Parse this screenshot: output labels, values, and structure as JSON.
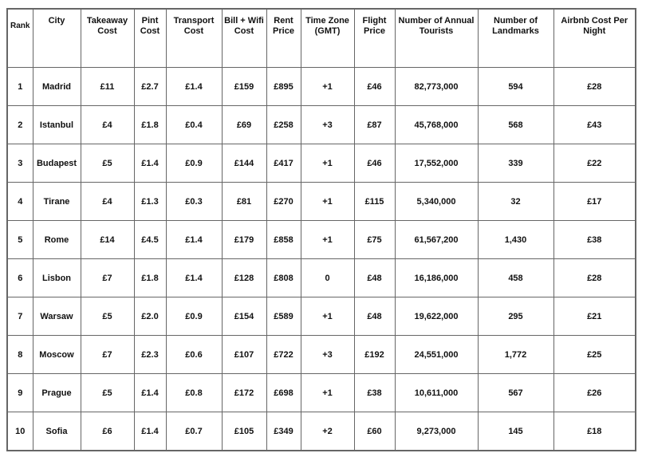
{
  "table": {
    "columns": [
      "Rank",
      "City",
      "Takeaway Cost",
      "Pint Cost",
      "Transport Cost",
      "Bill + Wifi Cost",
      "Rent Price",
      "Time Zone (GMT)",
      "Flight Price",
      "Number of Annual Tourists",
      "Number of Landmarks",
      "Airbnb Cost Per Night"
    ],
    "rows": [
      [
        "1",
        "Madrid",
        "£11",
        "£2.7",
        "£1.4",
        "£159",
        "£895",
        "+1",
        "£46",
        "82,773,000",
        "594",
        "£28"
      ],
      [
        "2",
        "Istanbul",
        "£4",
        "£1.8",
        "£0.4",
        "£69",
        "£258",
        "+3",
        "£87",
        "45,768,000",
        "568",
        "£43"
      ],
      [
        "3",
        "Budapest",
        "£5",
        "£1.4",
        "£0.9",
        "£144",
        "£417",
        "+1",
        "£46",
        "17,552,000",
        "339",
        "£22"
      ],
      [
        "4",
        "Tirane",
        "£4",
        "£1.3",
        "£0.3",
        "£81",
        "£270",
        "+1",
        "£115",
        "5,340,000",
        "32",
        "£17"
      ],
      [
        "5",
        "Rome",
        "£14",
        "£4.5",
        "£1.4",
        "£179",
        "£858",
        "+1",
        "£75",
        "61,567,200",
        "1,430",
        "£38"
      ],
      [
        "6",
        "Lisbon",
        "£7",
        "£1.8",
        "£1.4",
        "£128",
        "£808",
        "0",
        "£48",
        "16,186,000",
        "458",
        "£28"
      ],
      [
        "7",
        "Warsaw",
        "£5",
        "£2.0",
        "£0.9",
        "£154",
        "£589",
        "+1",
        "£48",
        "19,622,000",
        "295",
        "£21"
      ],
      [
        "8",
        "Moscow",
        "£7",
        "£2.3",
        "£0.6",
        "£107",
        "£722",
        "+3",
        "£192",
        "24,551,000",
        "1,772",
        "£25"
      ],
      [
        "9",
        "Prague",
        "£5",
        "£1.4",
        "£0.8",
        "£172",
        "£698",
        "+1",
        "£38",
        "10,611,000",
        "567",
        "£26"
      ],
      [
        "10",
        "Sofia",
        "£6",
        "£1.4",
        "£0.7",
        "£105",
        "£349",
        "+2",
        "£60",
        "9,273,000",
        "145",
        "£18"
      ]
    ]
  }
}
